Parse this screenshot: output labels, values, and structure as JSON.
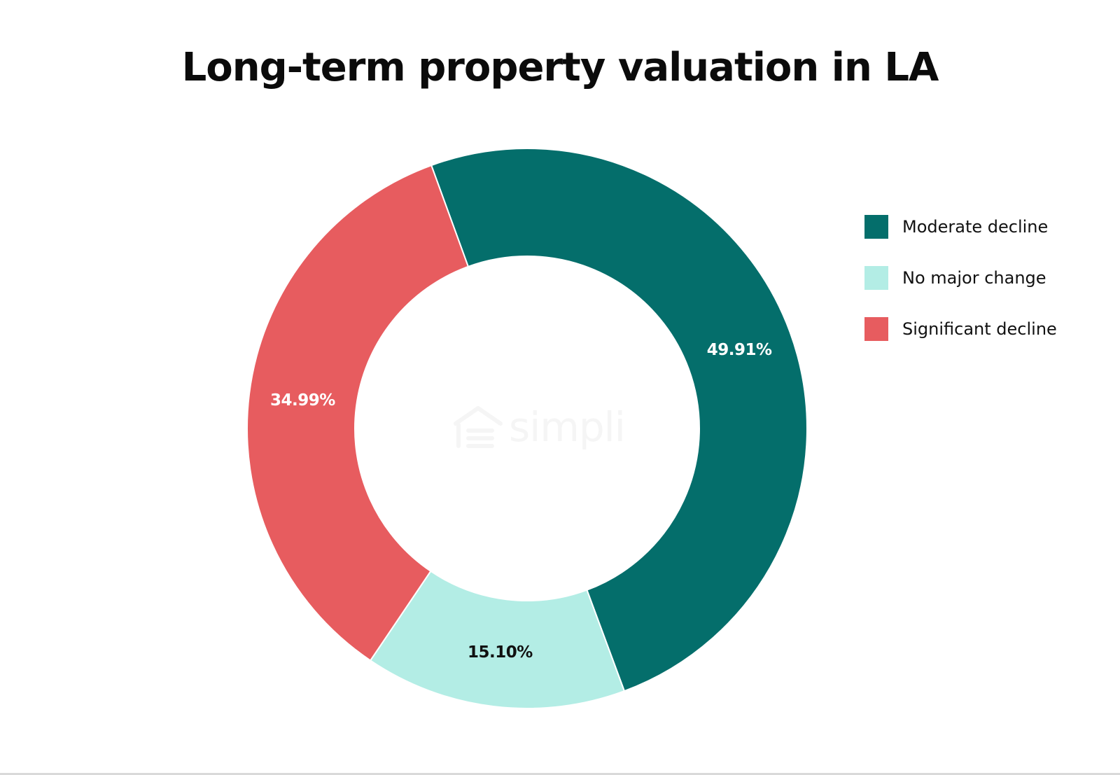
{
  "chart_data": {
    "type": "pie",
    "variant": "donut",
    "title": "Long-term property valuation in LA",
    "categories": [
      "Moderate decline",
      "No major change",
      "Significant decline"
    ],
    "values": [
      49.91,
      15.1,
      34.99
    ],
    "value_labels": [
      "49.91%",
      "15.10%",
      "34.99%"
    ],
    "colors": [
      "#046e6b",
      "#b3ede5",
      "#e75c5f"
    ],
    "label_colors": [
      "#ffffff",
      "#111111",
      "#ffffff"
    ],
    "legend_position": "right"
  },
  "watermark": {
    "text": "simpli",
    "icon": "house-logo-icon"
  }
}
